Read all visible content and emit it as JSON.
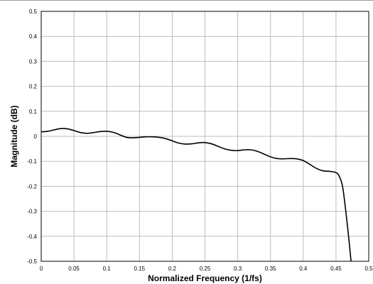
{
  "chart_data": {
    "type": "line",
    "title": "",
    "xlabel": "Normalized Frequency (1/fs)",
    "ylabel": "Magnitude (dB)",
    "xlim": [
      0,
      0.5
    ],
    "ylim": [
      -0.5,
      0.5
    ],
    "grid": true,
    "legend": "none",
    "line_color": "#000000",
    "grid_color": "#bdbdbd",
    "x_ticks": [
      "0",
      "0.05",
      "0.1",
      "0.15",
      "0.2",
      "0.25",
      "0.3",
      "0.35",
      "0.4",
      "0.45",
      "0.5"
    ],
    "y_ticks": [
      "0.5",
      "0.4",
      "0.3",
      "0.2",
      "0.1",
      "0",
      "-0.1",
      "-0.2",
      "-0.3",
      "-0.4",
      "-0.5"
    ],
    "series": [
      {
        "x": [
          0,
          0.01,
          0.02,
          0.03,
          0.04,
          0.05,
          0.06,
          0.07,
          0.08,
          0.09,
          0.1,
          0.11,
          0.12,
          0.13,
          0.14,
          0.15,
          0.16,
          0.17,
          0.18,
          0.19,
          0.2,
          0.21,
          0.22,
          0.23,
          0.24,
          0.25,
          0.26,
          0.27,
          0.28,
          0.29,
          0.3,
          0.31,
          0.32,
          0.33,
          0.34,
          0.35,
          0.36,
          0.37,
          0.38,
          0.39,
          0.4,
          0.41,
          0.42,
          0.43,
          0.44,
          0.45,
          0.455,
          0.46,
          0.465,
          0.47,
          0.473
        ],
        "y": [
          0.018,
          0.02,
          0.026,
          0.031,
          0.03,
          0.023,
          0.015,
          0.012,
          0.015,
          0.019,
          0.02,
          0.016,
          0.006,
          -0.004,
          -0.006,
          -0.004,
          -0.002,
          -0.002,
          -0.004,
          -0.009,
          -0.018,
          -0.027,
          -0.031,
          -0.03,
          -0.026,
          -0.025,
          -0.03,
          -0.04,
          -0.05,
          -0.056,
          -0.057,
          -0.054,
          -0.054,
          -0.06,
          -0.071,
          -0.082,
          -0.089,
          -0.09,
          -0.089,
          -0.09,
          -0.097,
          -0.112,
          -0.128,
          -0.138,
          -0.14,
          -0.145,
          -0.16,
          -0.2,
          -0.3,
          -0.42,
          -0.5
        ]
      }
    ]
  }
}
